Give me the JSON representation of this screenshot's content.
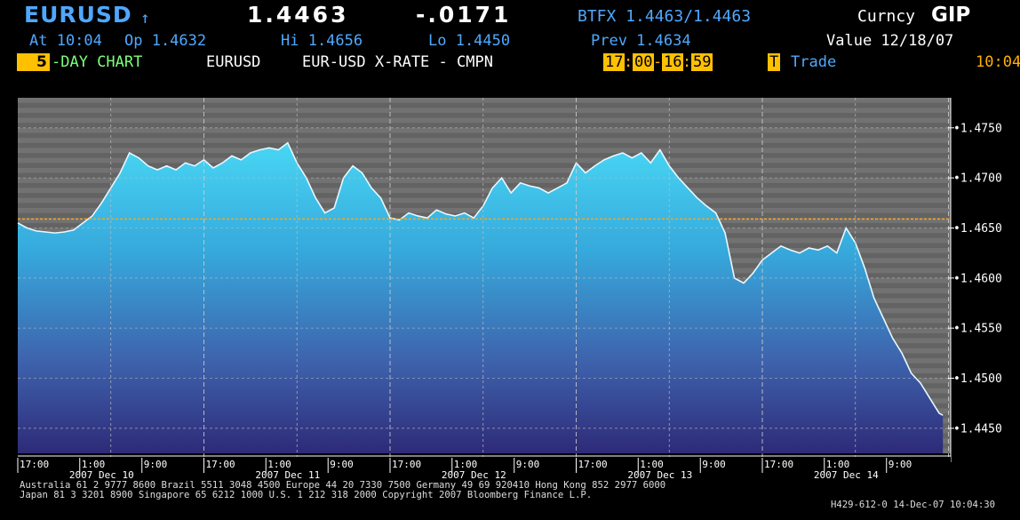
{
  "header": {
    "ticker": "EURUSD",
    "arrow": "↑",
    "last": "1.4463",
    "change": "-.0171",
    "quote": "BTFX 1.4463/1.4463",
    "source": "Curncy",
    "gip": "GIP",
    "at": "At 10:04",
    "open": "Op 1.4632",
    "hi": "Hi 1.4656",
    "lo": "Lo 1.4450",
    "prev": "Prev 1.4634",
    "value": "Value 12/18/07",
    "days": "5",
    "day_chart": "-DAY CHART",
    "chart_ticker": "EURUSD",
    "desc": "EUR-USD X-RATE - CMPN",
    "t1h": "17",
    "t1m": "00",
    "t2h": "16",
    "t2m": "59",
    "trade_key": "T",
    "trade": "Trade",
    "clock": "10:04"
  },
  "footer": {
    "line1": "Australia 61 2 9777 8600 Brazil 5511 3048 4500  Europe 44 20 7330 7500  Germany 49 69 920410  Hong Kong 852 2977 6000",
    "line2": "Japan 81 3 3201 8900       Singapore 65 6212 1000       U.S. 1 212 318 2000          Copyright 2007 Bloomberg Finance L.P.",
    "line3": "H429-612-0 14-Dec-07 10:04:30"
  },
  "chart_data": {
    "type": "area",
    "ylim": [
      1.4425,
      1.478
    ],
    "yticks": [
      "1.4450",
      "1.4500",
      "1.4550",
      "1.4600",
      "1.4650",
      "1.4700",
      "1.4750"
    ],
    "prev_close": 1.4659,
    "grid": true,
    "days": [
      "2007 Dec 10",
      "2007 Dec 11",
      "2007 Dec 12",
      "2007 Dec 13",
      "2007 Dec 14"
    ],
    "time_ticks": [
      "17:00",
      "1:00",
      "9:00"
    ],
    "x": [
      0,
      0.05,
      0.1,
      0.15,
      0.2,
      0.25,
      0.3,
      0.35,
      0.4,
      0.45,
      0.5,
      0.55,
      0.6,
      0.65,
      0.7,
      0.75,
      0.8,
      0.85,
      0.9,
      0.95,
      1.0,
      1.05,
      1.1,
      1.15,
      1.2,
      1.25,
      1.3,
      1.35,
      1.4,
      1.45,
      1.5,
      1.55,
      1.6,
      1.65,
      1.7,
      1.75,
      1.8,
      1.85,
      1.9,
      1.95,
      2.0,
      2.05,
      2.1,
      2.15,
      2.2,
      2.25,
      2.3,
      2.35,
      2.4,
      2.45,
      2.5,
      2.55,
      2.6,
      2.65,
      2.7,
      2.75,
      2.8,
      2.85,
      2.9,
      2.95,
      3.0,
      3.05,
      3.1,
      3.15,
      3.2,
      3.25,
      3.3,
      3.35,
      3.4,
      3.45,
      3.5,
      3.55,
      3.6,
      3.65,
      3.7,
      3.75,
      3.8,
      3.85,
      3.9,
      3.95,
      4.0,
      4.05,
      4.1,
      4.15,
      4.2,
      4.25,
      4.3,
      4.35,
      4.4,
      4.45,
      4.5,
      4.55,
      4.6,
      4.65,
      4.7,
      4.75,
      4.8,
      4.85,
      4.9,
      4.95,
      4.97
    ],
    "y": [
      1.4655,
      1.465,
      1.4647,
      1.4646,
      1.4645,
      1.4646,
      1.4648,
      1.4655,
      1.4662,
      1.4675,
      1.469,
      1.4705,
      1.4725,
      1.472,
      1.4712,
      1.4708,
      1.4712,
      1.4708,
      1.4715,
      1.4712,
      1.4718,
      1.471,
      1.4715,
      1.4722,
      1.4718,
      1.4725,
      1.4728,
      1.473,
      1.4728,
      1.4735,
      1.4715,
      1.47,
      1.468,
      1.4665,
      1.467,
      1.47,
      1.4712,
      1.4705,
      1.469,
      1.468,
      1.466,
      1.4658,
      1.4665,
      1.4662,
      1.466,
      1.4668,
      1.4664,
      1.4662,
      1.4665,
      1.466,
      1.4672,
      1.469,
      1.47,
      1.4685,
      1.4695,
      1.4692,
      1.469,
      1.4685,
      1.469,
      1.4695,
      1.4715,
      1.4705,
      1.4712,
      1.4718,
      1.4722,
      1.4725,
      1.472,
      1.4725,
      1.4715,
      1.4728,
      1.4712,
      1.47,
      1.469,
      1.468,
      1.4672,
      1.4665,
      1.4645,
      1.46,
      1.4595,
      1.4605,
      1.4618,
      1.4625,
      1.4632,
      1.4628,
      1.4625,
      1.463,
      1.4628,
      1.4632,
      1.4625,
      1.465,
      1.4635,
      1.461,
      1.458,
      1.456,
      1.454,
      1.4525,
      1.4505,
      1.4495,
      1.448,
      1.4465,
      1.4463
    ]
  },
  "colors": {
    "header_blue": "#4fa8ff",
    "amber": "#ffb000",
    "prev_line": "#f5a623",
    "area_top": "#48d6f4",
    "area_bottom": "#2e2a78"
  }
}
